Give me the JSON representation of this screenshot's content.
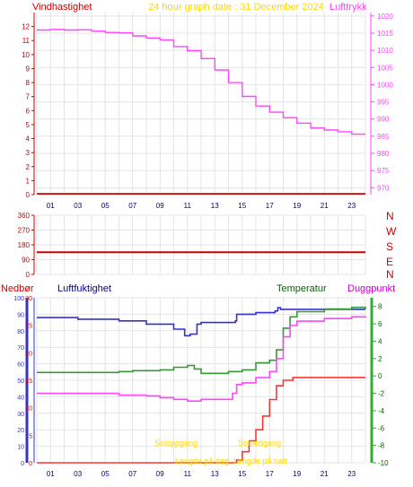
{
  "header": {
    "left_label": "Vindhastighet",
    "center_label": "24 hour graph date : 31 December 2024",
    "right_label": "Lufttrykk"
  },
  "x_ticks": [
    "01",
    "03",
    "05",
    "07",
    "09",
    "11",
    "13",
    "15",
    "17",
    "19",
    "21",
    "23"
  ],
  "colors": {
    "wind": "#cc0000",
    "pressure": "#ff44ff",
    "direction": "#cc0000",
    "rain": "#ff3333",
    "humidity": "#3333cc",
    "temperature": "#339933",
    "dewpoint": "#ff44ff",
    "grid": "#e4e4e4",
    "sun_label": "#ffd700",
    "rain_axis": "#3333cc",
    "temp_axis": "#33aa33"
  },
  "panel2": {
    "dir_labels": [
      "N",
      "W",
      "S",
      "E",
      "N"
    ]
  },
  "panel3": {
    "labels": {
      "rain": "Nedbør",
      "humidity": "Luftfuktighet",
      "temperature": "Temperatur",
      "dewpoint": "Duggpunkt"
    },
    "sun_labels": [
      "Soloppgang",
      "Solnedgang",
      "Lengde på dag",
      "Lengde på natt"
    ]
  },
  "chart_data": [
    {
      "type": "line",
      "title": "24 hour graph date : 31 December 2024",
      "x_range": [
        0,
        24
      ],
      "x_tick_labels": [
        "01",
        "03",
        "05",
        "07",
        "09",
        "11",
        "13",
        "15",
        "17",
        "19",
        "21",
        "23"
      ],
      "left_axis": {
        "label": "Vindhastighet",
        "ylim": [
          0,
          13
        ],
        "ticks": [
          0,
          1,
          2,
          3,
          4,
          5,
          6,
          7,
          8,
          9,
          10,
          11,
          12
        ]
      },
      "right_axis": {
        "label": "Lufttrykk",
        "ylim": [
          968,
          1021
        ],
        "ticks": [
          970,
          975,
          980,
          985,
          990,
          995,
          1000,
          1005,
          1010,
          1015,
          1020
        ]
      },
      "grid": true,
      "series": [
        {
          "name": "Vindhastighet",
          "axis": "left",
          "points": [
            [
              0,
              0.05
            ],
            [
              24,
              0.05
            ]
          ]
        },
        {
          "name": "Lufttrykk",
          "axis": "right",
          "points": [
            [
              0,
              1015.9
            ],
            [
              1,
              1016.1
            ],
            [
              2,
              1015.9
            ],
            [
              3,
              1016.0
            ],
            [
              4,
              1015.6
            ],
            [
              5,
              1015.2
            ],
            [
              6,
              1015.1
            ],
            [
              7,
              1014.2
            ],
            [
              8,
              1013.6
            ],
            [
              9,
              1013.0
            ],
            [
              10,
              1011.1
            ],
            [
              11,
              1009.9
            ],
            [
              12,
              1007.6
            ],
            [
              13,
              1004.3
            ],
            [
              14,
              1000.6
            ],
            [
              15,
              996.6
            ],
            [
              16,
              993.8
            ],
            [
              17,
              992.0
            ],
            [
              18,
              990.4
            ],
            [
              19,
              988.8
            ],
            [
              20,
              987.4
            ],
            [
              21,
              986.8
            ],
            [
              22,
              986.3
            ],
            [
              23,
              985.6
            ],
            [
              24,
              985.6
            ]
          ]
        }
      ]
    },
    {
      "type": "line",
      "title": "",
      "x_range": [
        0,
        24
      ],
      "left_axis": {
        "ylim": [
          0,
          360
        ],
        "ticks": [
          0,
          90,
          180,
          270,
          360
        ],
        "tick_labels": [
          "0",
          "90",
          "180",
          "270",
          "360"
        ]
      },
      "right_axis": {
        "tick_labels": [
          "N",
          "W",
          "S",
          "E",
          "N"
        ]
      },
      "grid": true,
      "series": [
        {
          "name": "",
          "points": [
            [
              0,
              135
            ],
            [
              24,
              135
            ]
          ]
        }
      ]
    },
    {
      "type": "line",
      "title": "",
      "x_range": [
        0,
        24
      ],
      "x_tick_labels": [
        "01",
        "03",
        "05",
        "07",
        "09",
        "11",
        "13",
        "15",
        "17",
        "19",
        "21",
        "23"
      ],
      "humidity_axis": {
        "ylim": [
          0,
          100
        ],
        "ticks": [
          0,
          10,
          20,
          30,
          40,
          50,
          60,
          70,
          80,
          90,
          100
        ]
      },
      "rain_axis": {
        "ylim": [
          0,
          30
        ],
        "ticks": [
          0,
          5,
          10,
          15,
          20,
          25,
          30
        ]
      },
      "temp_axis": {
        "ylim": [
          -10,
          9
        ],
        "ticks": [
          -10,
          -8,
          -6,
          -4,
          -2,
          0,
          2,
          4,
          6,
          8
        ]
      },
      "grid": true,
      "series": [
        {
          "name": "Luftfuktighet",
          "axis": "humidity",
          "points": [
            [
              0,
              88
            ],
            [
              3,
              87
            ],
            [
              6,
              86
            ],
            [
              8,
              84
            ],
            [
              9,
              84
            ],
            [
              10,
              81
            ],
            [
              10.8,
              77
            ],
            [
              11.2,
              78
            ],
            [
              11.7,
              84
            ],
            [
              12,
              85
            ],
            [
              14.5,
              86
            ],
            [
              14.6,
              90
            ],
            [
              16,
              91
            ],
            [
              17.4,
              92
            ],
            [
              17.6,
              94
            ],
            [
              17.8,
              93
            ],
            [
              24,
              93
            ]
          ]
        },
        {
          "name": "Nedbør",
          "axis": "rain",
          "points": [
            [
              0,
              0
            ],
            [
              14.4,
              0
            ],
            [
              14.6,
              0.5
            ],
            [
              15,
              2
            ],
            [
              15.5,
              4
            ],
            [
              16,
              6
            ],
            [
              16.5,
              8.5
            ],
            [
              17,
              11.5
            ],
            [
              17.5,
              14
            ],
            [
              18,
              15
            ],
            [
              18.6,
              15
            ],
            [
              18.7,
              15.5
            ],
            [
              24,
              15.5
            ]
          ]
        },
        {
          "name": "Temperatur",
          "axis": "temp",
          "points": [
            [
              0,
              0.4
            ],
            [
              3,
              0.4
            ],
            [
              6,
              0.5
            ],
            [
              7,
              0.6
            ],
            [
              8,
              0.6
            ],
            [
              9,
              0.7
            ],
            [
              10,
              1.0
            ],
            [
              11,
              1.2
            ],
            [
              11.5,
              0.8
            ],
            [
              12,
              0.3
            ],
            [
              14,
              0.5
            ],
            [
              15,
              0.7
            ],
            [
              16,
              1.5
            ],
            [
              17,
              1.8
            ],
            [
              17.5,
              3.0
            ],
            [
              18,
              5.5
            ],
            [
              18.5,
              6.8
            ],
            [
              19,
              7.4
            ],
            [
              21,
              7.7
            ],
            [
              23,
              7.9
            ],
            [
              24,
              7.7
            ]
          ]
        },
        {
          "name": "Duggpunkt",
          "axis": "temp",
          "points": [
            [
              0,
              -2.0
            ],
            [
              3,
              -2.0
            ],
            [
              6,
              -2.2
            ],
            [
              8,
              -2.3
            ],
            [
              9,
              -2.5
            ],
            [
              10,
              -2.7
            ],
            [
              11,
              -2.9
            ],
            [
              12,
              -2.7
            ],
            [
              14.3,
              -2.0
            ],
            [
              14.6,
              -1.0
            ],
            [
              15,
              -0.8
            ],
            [
              16,
              -0.2
            ],
            [
              17,
              0.5
            ],
            [
              17.5,
              2.0
            ],
            [
              18,
              4.5
            ],
            [
              18.5,
              5.8
            ],
            [
              19,
              6.3
            ],
            [
              21,
              6.6
            ],
            [
              23,
              6.8
            ],
            [
              24,
              6.7
            ]
          ]
        }
      ]
    }
  ]
}
